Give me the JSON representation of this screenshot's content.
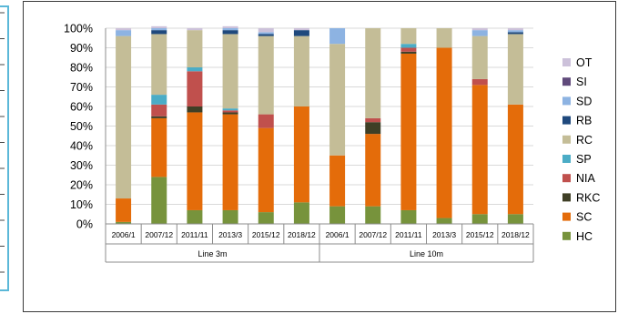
{
  "chart_data": {
    "type": "bar",
    "stacked": true,
    "percent": true,
    "title": "",
    "xlabel": "",
    "ylabel": "",
    "ylim": [
      0,
      100
    ],
    "y_ticks": [
      "0%",
      "10%",
      "20%",
      "30%",
      "40%",
      "50%",
      "60%",
      "70%",
      "80%",
      "90%",
      "100%"
    ],
    "groups": [
      {
        "name": "Line 3m",
        "categories": [
          "2006/1",
          "2007/12",
          "2011/11",
          "2013/3",
          "2015/12",
          "2018/12"
        ]
      },
      {
        "name": "Line 10m",
        "categories": [
          "2006/1",
          "2007/12",
          "2011/11",
          "2013/3",
          "2015/12",
          "2018/12"
        ]
      }
    ],
    "categories": [
      "2006/1",
      "2007/12",
      "2011/11",
      "2013/3",
      "2015/12",
      "2018/12",
      "2006/1",
      "2007/12",
      "2011/11",
      "2013/3",
      "2015/12",
      "2018/12"
    ],
    "legend_position": "right",
    "series": [
      {
        "name": "HC",
        "color": "#77933c",
        "values": [
          1,
          24,
          7,
          7,
          6,
          11,
          9,
          9,
          7,
          3,
          5,
          5
        ]
      },
      {
        "name": "SC",
        "color": "#e46c0a",
        "values": [
          12,
          30,
          50,
          49,
          43,
          49,
          26,
          37,
          80,
          87,
          66,
          56
        ]
      },
      {
        "name": "RKC",
        "color": "#3f3f26",
        "values": [
          0,
          1,
          3,
          1,
          0,
          0,
          0,
          6,
          1,
          0,
          0,
          0
        ]
      },
      {
        "name": "NIA",
        "color": "#c0504d",
        "values": [
          0,
          6,
          18,
          1,
          7,
          0,
          0,
          2,
          2,
          0,
          3,
          0
        ]
      },
      {
        "name": "SP",
        "color": "#4bacc6",
        "values": [
          0,
          5,
          2,
          1,
          0,
          0,
          0,
          0,
          2,
          0,
          0,
          0
        ]
      },
      {
        "name": "RC",
        "color": "#c4bd97",
        "values": [
          83,
          31,
          19,
          38,
          40,
          36,
          57,
          46,
          8,
          10,
          22,
          36
        ]
      },
      {
        "name": "RB",
        "color": "#1f497d",
        "values": [
          0,
          2,
          0,
          2,
          1,
          3,
          0,
          0,
          0,
          0,
          0,
          1
        ]
      },
      {
        "name": "SD",
        "color": "#8db3e2",
        "values": [
          3,
          1,
          0,
          1,
          1,
          0,
          8,
          0,
          0,
          0,
          3,
          1
        ]
      },
      {
        "name": "SI",
        "color": "#604a7b",
        "values": [
          0,
          0,
          0,
          0,
          0,
          0,
          0,
          0,
          0,
          0,
          0,
          0
        ]
      },
      {
        "name": "OT",
        "color": "#ccc1da",
        "values": [
          1,
          1,
          1,
          1,
          2,
          1,
          0,
          0,
          0,
          0,
          1,
          1
        ]
      }
    ],
    "legend_order": [
      "OT",
      "SI",
      "SD",
      "RB",
      "RC",
      "SP",
      "NIA",
      "RKC",
      "SC",
      "HC"
    ]
  }
}
